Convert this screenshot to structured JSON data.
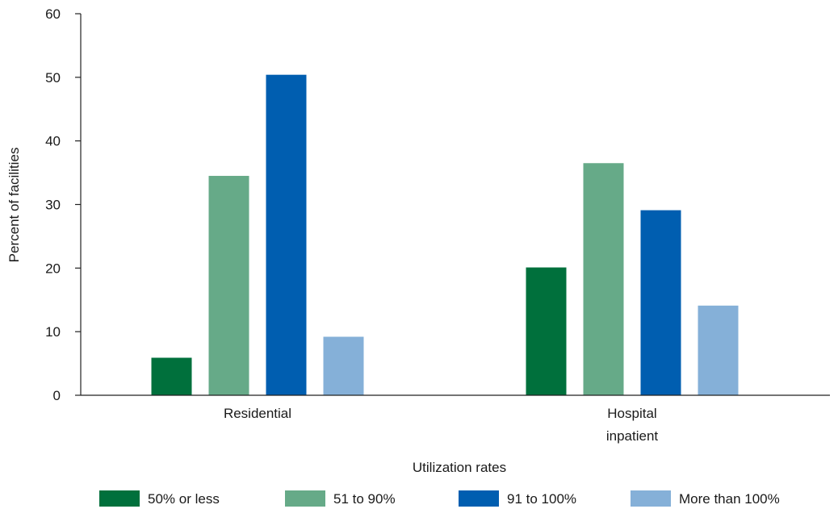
{
  "chart_data": {
    "type": "bar",
    "categories": [
      [
        "Residential"
      ],
      [
        "Hospital",
        "inpatient"
      ]
    ],
    "series": [
      {
        "name": "50% or less",
        "values": [
          5.9,
          20.1
        ],
        "color": "#00703c"
      },
      {
        "name": "51 to 90%",
        "values": [
          34.5,
          36.5
        ],
        "color": "#66aa88"
      },
      {
        "name": "91 to 100%",
        "values": [
          50.4,
          29.1
        ],
        "color": "#005eb0"
      },
      {
        "name": "More than 100%",
        "values": [
          9.2,
          14.1
        ],
        "color": "#85b0d8"
      }
    ],
    "xlabel": "Utilization rates",
    "ylabel": "Percent of facilities",
    "ylim": [
      0,
      60
    ],
    "yticks": [
      "0",
      "10",
      "20",
      "30",
      "40",
      "50",
      "60"
    ],
    "grid": false,
    "legend_position": "bottom"
  }
}
